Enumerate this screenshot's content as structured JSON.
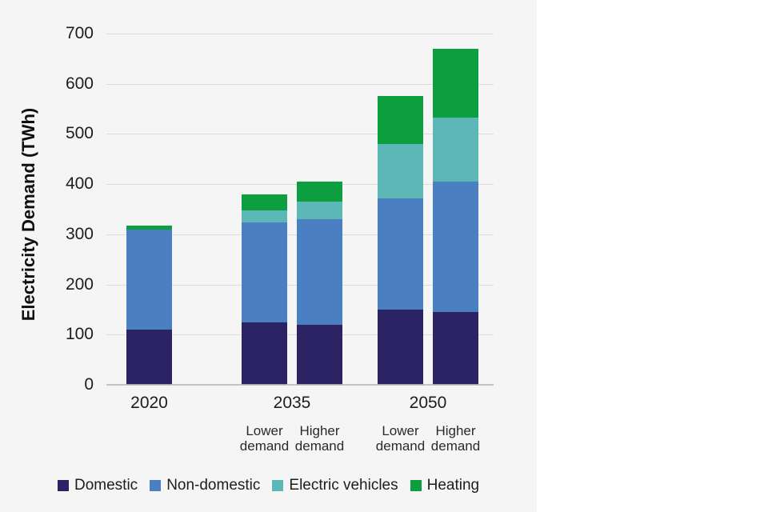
{
  "chart_data": {
    "type": "bar",
    "stacked": true,
    "title": "",
    "xlabel": "",
    "ylabel": "Electricity Demand (TWh)",
    "ylim": [
      0,
      700
    ],
    "y_ticks": [
      0,
      100,
      200,
      300,
      400,
      500,
      600,
      700
    ],
    "grid": "horizontal",
    "legend_position": "bottom",
    "series": [
      "Domestic",
      "Non-domestic",
      "Electric vehicles",
      "Heating"
    ],
    "series_colors": [
      "#2b2364",
      "#4a80c1",
      "#5bb8b6",
      "#0d9e3f"
    ],
    "groups": [
      {
        "label": "2020",
        "bars": [
          {
            "sub": "",
            "values": [
              110,
              200,
              0,
              8
            ],
            "total": 318
          }
        ]
      },
      {
        "label": "2035",
        "bars": [
          {
            "sub": "Lower demand",
            "values": [
              125,
              198,
              25,
              32
            ],
            "total": 380
          },
          {
            "sub": "Higher demand",
            "values": [
              120,
              210,
              35,
              40
            ],
            "total": 405
          }
        ]
      },
      {
        "label": "2050",
        "bars": [
          {
            "sub": "Lower demand",
            "values": [
              150,
              222,
              108,
              95
            ],
            "total": 575
          },
          {
            "sub": "Higher demand",
            "values": [
              145,
              260,
              128,
              137
            ],
            "total": 670
          }
        ]
      }
    ],
    "legend": [
      "Domestic",
      "Non-domestic",
      "Electric vehicles",
      "Heating"
    ]
  },
  "panel": {
    "background": "#f5f5f6",
    "page_background": "#ffffff"
  }
}
